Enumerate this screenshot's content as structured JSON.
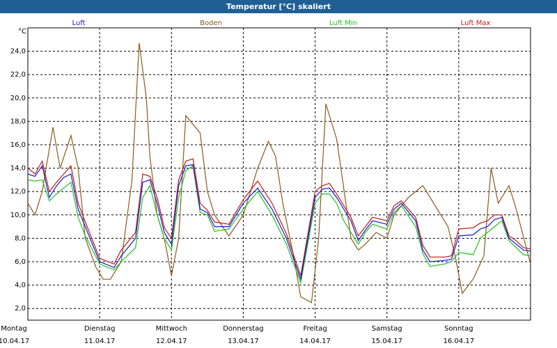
{
  "window": {
    "title": "Temperatur [°C] skaliert"
  },
  "colors": {
    "titlebar": "#1f5f96",
    "Luft": "#1818c8",
    "Boden": "#8a5a1a",
    "Luft Min": "#20c020",
    "Luft Max": "#c01818"
  },
  "chart_data": {
    "type": "line",
    "title": "Temperatur [°C] skaliert",
    "ylabel": "°C",
    "xlabel": "",
    "ylim": [
      1,
      26
    ],
    "xlim": [
      0,
      7
    ],
    "grid": true,
    "legend": "top",
    "yticks": [
      "2,0",
      "4,0",
      "6,0",
      "8,0",
      "10,0",
      "12,0",
      "14,0",
      "16,0",
      "18,0",
      "20,0",
      "22,0",
      "24,0"
    ],
    "yticks_values": [
      2,
      4,
      6,
      8,
      10,
      12,
      14,
      16,
      18,
      20,
      22,
      24
    ],
    "days": [
      {
        "name": "Montag",
        "date": "10.04.17"
      },
      {
        "name": "Dienstag",
        "date": "11.04.17"
      },
      {
        "name": "Mittwoch",
        "date": "12.04.17"
      },
      {
        "name": "Donnerstag",
        "date": "13.04.17"
      },
      {
        "name": "Freitag",
        "date": "14.04.17"
      },
      {
        "name": "Samstag",
        "date": "15.04.17"
      },
      {
        "name": "Sonntag",
        "date": "16.04.17"
      }
    ],
    "series": [
      {
        "name": "Luft",
        "x": [
          0,
          0.1,
          0.2,
          0.3,
          0.4,
          0.5,
          0.6,
          0.7,
          0.8,
          1.0,
          1.2,
          1.3,
          1.5,
          1.6,
          1.7,
          1.8,
          1.9,
          2.0,
          2.1,
          2.2,
          2.3,
          2.4,
          2.5,
          2.6,
          2.8,
          3.0,
          3.2,
          3.4,
          3.6,
          3.8,
          4.0,
          4.1,
          4.2,
          4.3,
          4.4,
          4.5,
          4.6,
          4.7,
          4.8,
          5.0,
          5.1,
          5.2,
          5.4,
          5.5,
          5.6,
          5.8,
          5.9,
          6.0,
          6.2,
          6.3,
          6.4,
          6.5,
          6.6,
          6.7,
          6.8,
          6.9,
          7.0
        ],
        "values": [
          13.5,
          13.3,
          14.2,
          11.5,
          12.5,
          13.2,
          13.5,
          10.5,
          9.0,
          6.0,
          5.5,
          6.5,
          8.0,
          12.8,
          13.0,
          11.0,
          8.5,
          7.5,
          12.5,
          14.2,
          14.3,
          10.5,
          10.2,
          9.0,
          9.0,
          11.0,
          12.3,
          10.5,
          8.0,
          4.5,
          11.5,
          12.2,
          12.3,
          11.5,
          10.5,
          9.5,
          7.8,
          8.7,
          9.5,
          9.2,
          10.5,
          11.0,
          9.5,
          7.0,
          6.0,
          6.1,
          6.2,
          8.2,
          8.3,
          8.8,
          9.0,
          9.6,
          9.8,
          8.0,
          7.5,
          7.0,
          6.9
        ]
      },
      {
        "name": "Boden",
        "x": [
          0,
          0.1,
          0.2,
          0.35,
          0.45,
          0.6,
          0.7,
          0.8,
          0.95,
          1.05,
          1.15,
          1.3,
          1.45,
          1.55,
          1.65,
          1.7,
          1.8,
          1.9,
          2.0,
          2.1,
          2.2,
          2.4,
          2.5,
          2.6,
          2.8,
          3.0,
          3.2,
          3.35,
          3.45,
          3.55,
          3.7,
          3.8,
          3.95,
          4.05,
          4.15,
          4.3,
          4.5,
          4.6,
          4.7,
          4.85,
          5.0,
          5.1,
          5.3,
          5.5,
          5.65,
          5.85,
          5.95,
          6.05,
          6.2,
          6.35,
          6.45,
          6.55,
          6.7,
          6.8,
          7.0
        ],
        "values": [
          11.0,
          10.0,
          12.0,
          17.5,
          14.0,
          16.8,
          14.0,
          8.0,
          5.5,
          4.5,
          4.5,
          6.0,
          13.0,
          24.7,
          20.0,
          15.0,
          10.0,
          8.0,
          4.8,
          8.0,
          18.5,
          17.0,
          12.0,
          10.0,
          8.2,
          10.0,
          14.0,
          16.3,
          15.0,
          11.0,
          6.5,
          3.0,
          2.5,
          8.0,
          19.5,
          16.5,
          8.0,
          7.0,
          7.5,
          8.5,
          8.0,
          10.0,
          11.5,
          12.5,
          11.0,
          9.0,
          6.5,
          3.3,
          4.5,
          6.5,
          14.0,
          11.0,
          12.5,
          10.5,
          5.8
        ]
      },
      {
        "name": "Luft Min",
        "x": [
          0,
          0.1,
          0.2,
          0.3,
          0.4,
          0.5,
          0.6,
          0.7,
          0.8,
          1.0,
          1.2,
          1.3,
          1.5,
          1.6,
          1.7,
          1.8,
          1.9,
          2.0,
          2.1,
          2.2,
          2.3,
          2.4,
          2.5,
          2.6,
          2.8,
          3.0,
          3.2,
          3.4,
          3.6,
          3.8,
          4.0,
          4.1,
          4.2,
          4.3,
          4.4,
          4.5,
          4.6,
          4.7,
          4.8,
          5.0,
          5.1,
          5.2,
          5.4,
          5.5,
          5.6,
          5.8,
          5.9,
          6.0,
          6.2,
          6.3,
          6.4,
          6.5,
          6.6,
          6.7,
          6.8,
          6.9,
          7.0
        ],
        "values": [
          13.0,
          12.9,
          13.0,
          11.2,
          11.8,
          12.3,
          12.8,
          9.8,
          8.2,
          5.8,
          5.3,
          6.0,
          7.2,
          11.5,
          12.5,
          10.0,
          8.0,
          7.0,
          11.5,
          13.8,
          14.2,
          10.2,
          10.0,
          8.6,
          8.8,
          10.5,
          12.0,
          10.0,
          7.5,
          4.2,
          11.0,
          11.8,
          11.8,
          11.0,
          9.5,
          8.5,
          7.5,
          8.5,
          9.2,
          8.8,
          10.2,
          10.8,
          9.0,
          6.7,
          5.6,
          5.8,
          6.0,
          6.8,
          6.6,
          8.0,
          8.5,
          9.0,
          9.5,
          7.8,
          7.2,
          6.6,
          6.5
        ]
      },
      {
        "name": "Luft Max",
        "x": [
          0,
          0.1,
          0.2,
          0.3,
          0.4,
          0.5,
          0.6,
          0.7,
          0.8,
          1.0,
          1.2,
          1.3,
          1.5,
          1.6,
          1.7,
          1.8,
          1.9,
          2.0,
          2.1,
          2.2,
          2.3,
          2.4,
          2.5,
          2.6,
          2.8,
          3.0,
          3.2,
          3.4,
          3.6,
          3.8,
          4.0,
          4.1,
          4.2,
          4.3,
          4.4,
          4.5,
          4.6,
          4.7,
          4.8,
          5.0,
          5.1,
          5.2,
          5.4,
          5.5,
          5.6,
          5.8,
          5.9,
          6.0,
          6.2,
          6.3,
          6.4,
          6.5,
          6.6,
          6.7,
          6.8,
          6.9,
          7.0
        ],
        "values": [
          14.0,
          13.5,
          14.6,
          12.0,
          12.8,
          13.5,
          14.2,
          11.0,
          9.4,
          6.3,
          5.8,
          7.0,
          8.5,
          13.5,
          13.3,
          11.5,
          8.9,
          8.0,
          13.0,
          14.6,
          14.8,
          11.0,
          10.4,
          9.4,
          9.2,
          11.3,
          12.9,
          11.0,
          8.4,
          4.8,
          12.0,
          12.5,
          12.7,
          11.8,
          10.8,
          9.8,
          8.2,
          9.0,
          9.8,
          9.5,
          10.8,
          11.2,
          9.8,
          7.4,
          6.4,
          6.4,
          6.5,
          8.8,
          8.9,
          9.3,
          9.5,
          10.0,
          10.0,
          8.2,
          7.8,
          7.2,
          7.1
        ]
      }
    ]
  }
}
